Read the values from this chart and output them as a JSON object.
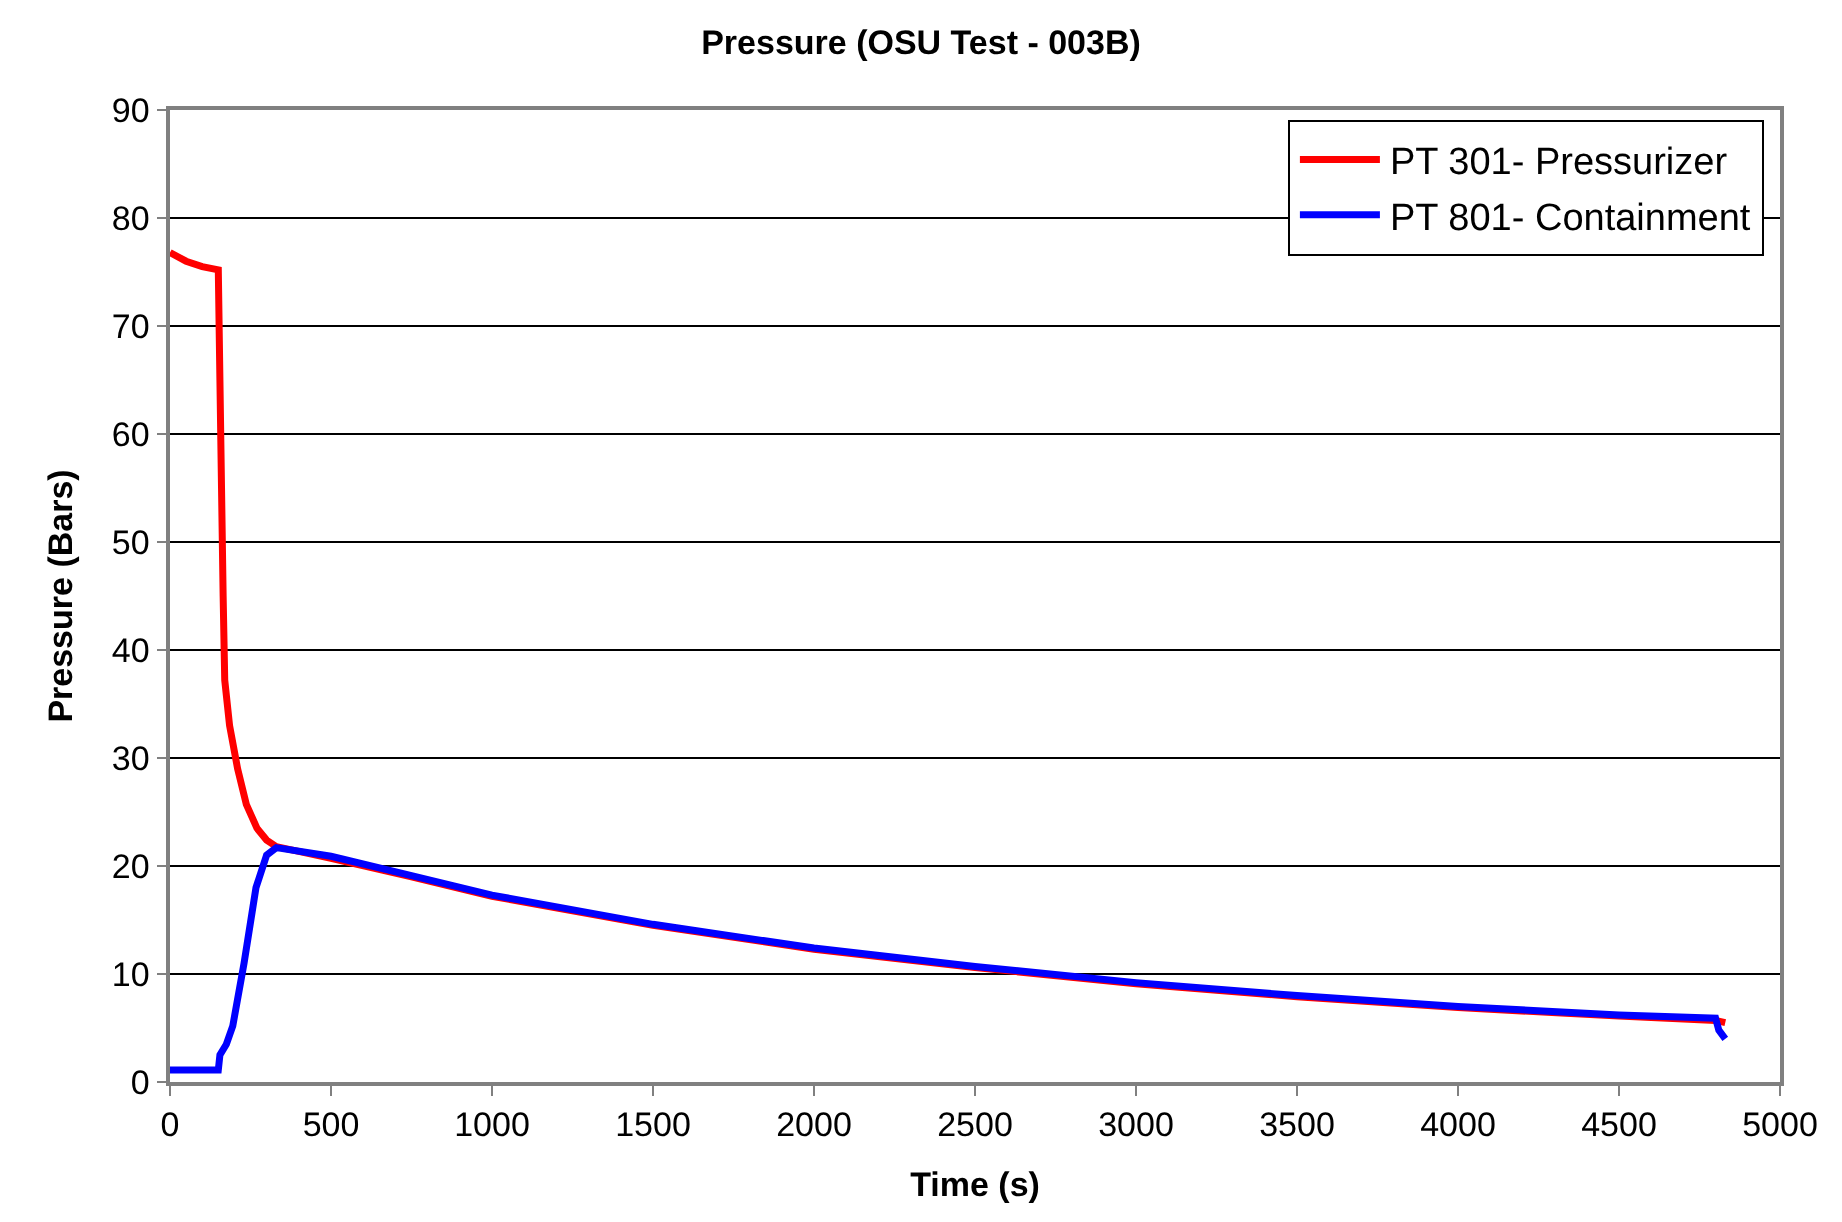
{
  "chart_data": {
    "type": "line",
    "title": "Pressure (OSU Test - 003B)",
    "xlabel": "Time (s)",
    "ylabel": "Pressure (Bars)",
    "xlim": [
      0,
      5000
    ],
    "xticks": [
      0,
      500,
      1000,
      1500,
      2000,
      2500,
      3000,
      3500,
      4000,
      4500,
      5000
    ],
    "ylim": [
      0,
      90
    ],
    "yticks": [
      0,
      10,
      20,
      30,
      40,
      50,
      60,
      70,
      80,
      90
    ],
    "grid": "y",
    "legend": "top right",
    "marker": "none",
    "line_style": "solid",
    "series": [
      {
        "name": "PT 301- Pressurizer",
        "color": "#ff0000",
        "x": [
          0,
          50,
          100,
          150,
          155,
          160,
          165,
          170,
          185,
          210,
          237,
          270,
          300,
          330,
          500,
          750,
          1000,
          1500,
          2000,
          2500,
          3000,
          3500,
          4000,
          4500,
          4800,
          4830
        ],
        "values": [
          76.8,
          76.0,
          75.5,
          75.2,
          65,
          55,
          45,
          37.2,
          33,
          29,
          25.7,
          23.5,
          22.4,
          21.8,
          20.7,
          19.0,
          17.2,
          14.5,
          12.3,
          10.6,
          9.1,
          7.9,
          6.9,
          6.1,
          5.7,
          5.5
        ]
      },
      {
        "name": "PT 801- Containment",
        "color": "#0000ff",
        "x": [
          0,
          150,
          155,
          175,
          195,
          230,
          267,
          300,
          330,
          500,
          750,
          1000,
          1500,
          2000,
          2500,
          3000,
          3500,
          4000,
          4500,
          4800,
          4810,
          4830
        ],
        "values": [
          1.1,
          1.1,
          2.5,
          3.5,
          5.2,
          11,
          18,
          21.0,
          21.7,
          20.9,
          19.1,
          17.3,
          14.6,
          12.4,
          10.7,
          9.2,
          8.0,
          7.0,
          6.2,
          5.9,
          4.8,
          4.0
        ]
      }
    ]
  }
}
